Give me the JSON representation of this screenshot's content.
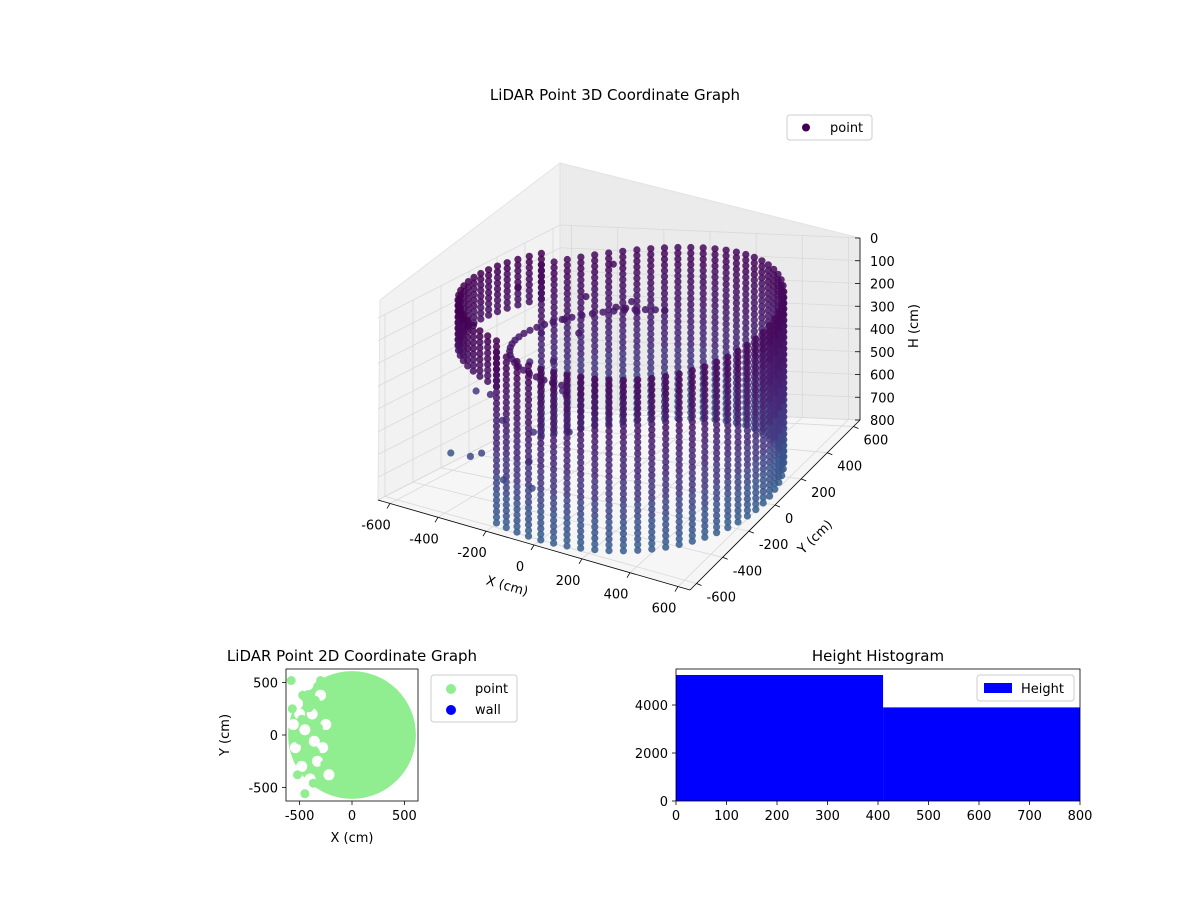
{
  "colors": {
    "point_3d_dark": "#440154",
    "point_3d_mid": "#3b528b",
    "point_2d": "#90ee90",
    "wall": "#0000ff",
    "histogram": "#0000ff",
    "pane": "#f2f2f2",
    "grid": "#d9d9d9"
  },
  "chart_data": [
    {
      "type": "scatter",
      "projection": "3d",
      "title": "LiDAR Point 3D Coordinate Graph",
      "xlabel": "X (cm)",
      "ylabel": "Y (cm)",
      "zlabel": "H (cm)",
      "xlim": [
        -650,
        650
      ],
      "ylim": [
        -650,
        650
      ],
      "zlim": [
        800,
        0
      ],
      "x_ticks": [
        -600,
        -400,
        -200,
        0,
        200,
        400,
        600
      ],
      "y_ticks": [
        -600,
        -400,
        -200,
        0,
        200,
        400,
        600
      ],
      "z_ticks": [
        0,
        100,
        200,
        300,
        400,
        500,
        600,
        700,
        800
      ],
      "legend": {
        "labels": [
          "point"
        ],
        "placement": "upper right"
      },
      "colormap": "viridis",
      "series": [
        {
          "name": "point",
          "description_values": {
            "wall_cylinder": {
              "center": [
                0,
                0
              ],
              "radius": 600,
              "h_range": [
                50,
                800
              ],
              "theta_deg_range": [
                -110,
                150
              ]
            },
            "wall_arc_front": {
              "center": [
                0,
                0
              ],
              "radius": 600,
              "h_range": [
                0,
                200
              ],
              "theta_deg_range": [
                150,
                250
              ]
            },
            "scattered": [
              [
                -560,
                200,
                120
              ],
              [
                -420,
                -300,
                650
              ],
              [
                -300,
                450,
                80
              ],
              [
                -200,
                300,
                200
              ],
              [
                -500,
                -100,
                480
              ],
              [
                -350,
                100,
                380
              ],
              [
                -260,
                -200,
                560
              ],
              [
                -150,
                -400,
                700
              ],
              [
                -450,
                350,
                300
              ],
              [
                -380,
                -450,
                600
              ],
              [
                -100,
                200,
                150
              ],
              [
                -620,
                0,
                520
              ],
              [
                -250,
                500,
                260
              ],
              [
                -300,
                -350,
                720
              ],
              [
                -180,
                -100,
                420
              ],
              [
                -480,
                150,
                420
              ],
              [
                -420,
                -150,
                560
              ],
              [
                -330,
                250,
                310
              ],
              [
                -220,
                -300,
                640
              ],
              [
                -550,
                -300,
                680
              ],
              [
                -140,
                350,
                230
              ],
              [
                -80,
                -250,
                500
              ],
              [
                -400,
                420,
                220
              ],
              [
                -520,
                300,
                350
              ],
              [
                -270,
                30,
                470
              ]
            ]
          }
        }
      ]
    },
    {
      "type": "scatter",
      "title": "LiDAR Point 2D Coordinate Graph",
      "xlabel": "X (cm)",
      "ylabel": "Y (cm)",
      "xlim": [
        -630,
        630
      ],
      "ylim": [
        -630,
        630
      ],
      "x_ticks": [
        -500,
        0,
        500
      ],
      "y_ticks": [
        -500,
        0,
        500
      ],
      "legend": {
        "labels": [
          "point",
          "wall"
        ],
        "placement": "outside right"
      },
      "series": [
        {
          "name": "point",
          "fill_shape": "disk",
          "center": [
            0,
            0
          ],
          "radius": 610
        },
        {
          "name": "wall",
          "points": []
        }
      ],
      "holes": [
        [
          -560,
          450
        ],
        [
          -520,
          300
        ],
        [
          -560,
          100
        ],
        [
          -540,
          -120
        ],
        [
          -480,
          -300
        ],
        [
          -540,
          -450
        ],
        [
          -420,
          480
        ],
        [
          -380,
          200
        ],
        [
          -360,
          -60
        ],
        [
          -330,
          -250
        ],
        [
          -400,
          -420
        ],
        [
          -300,
          380
        ],
        [
          -250,
          100
        ],
        [
          -220,
          -380
        ],
        [
          -450,
          50
        ],
        [
          -280,
          -120
        ],
        [
          -500,
          200
        ]
      ],
      "outlier_points": [
        [
          -580,
          520
        ],
        [
          -470,
          380
        ],
        [
          -480,
          150
        ],
        [
          -500,
          -50
        ],
        [
          -430,
          -200
        ],
        [
          -520,
          -380
        ],
        [
          -350,
          330
        ],
        [
          -320,
          70
        ],
        [
          -260,
          -280
        ],
        [
          -370,
          -460
        ],
        [
          -560,
          0
        ],
        [
          -450,
          -560
        ],
        [
          -300,
          520
        ],
        [
          -410,
          260
        ],
        [
          -350,
          -160
        ],
        [
          -570,
          250
        ]
      ]
    },
    {
      "type": "bar",
      "subtype": "histogram",
      "title": "Height Histogram",
      "xlim": [
        0,
        800
      ],
      "ylim": [
        0,
        5500
      ],
      "x_ticks": [
        0,
        100,
        200,
        300,
        400,
        500,
        600,
        700,
        800
      ],
      "y_ticks": [
        0,
        2000,
        4000
      ],
      "legend": {
        "labels": [
          "Height"
        ],
        "placement": "upper right"
      },
      "bins": [
        [
          0,
          410
        ],
        [
          410,
          800
        ]
      ],
      "values": [
        5250,
        3900
      ],
      "series": [
        {
          "name": "Height",
          "values": [
            5250,
            3900
          ]
        }
      ]
    }
  ]
}
